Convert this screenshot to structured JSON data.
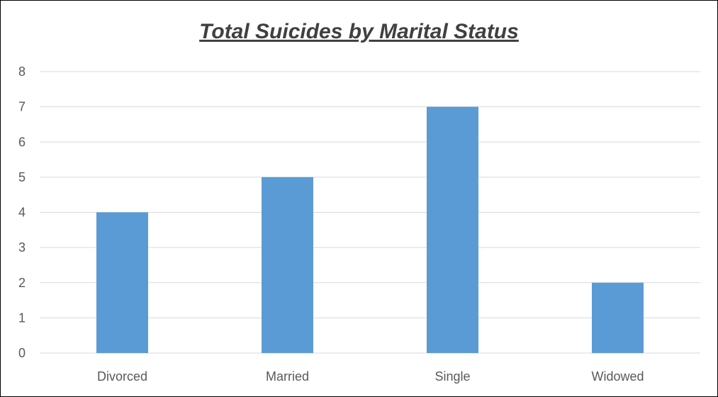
{
  "chart_data": {
    "type": "bar",
    "title": "Total Suicides by Marital Status",
    "xlabel": "",
    "ylabel": "",
    "categories": [
      "Divorced",
      "Married",
      "Single",
      "Widowed"
    ],
    "values": [
      4,
      5,
      7,
      2
    ],
    "ylim": [
      0,
      8
    ],
    "yticks": [
      "0",
      "1",
      "2",
      "3",
      "4",
      "5",
      "6",
      "7",
      "8"
    ],
    "grid": true,
    "legend": "none",
    "bar_color": "#5B9BD5",
    "grid_color": "#D9D9D9",
    "text_color": "#595959"
  }
}
